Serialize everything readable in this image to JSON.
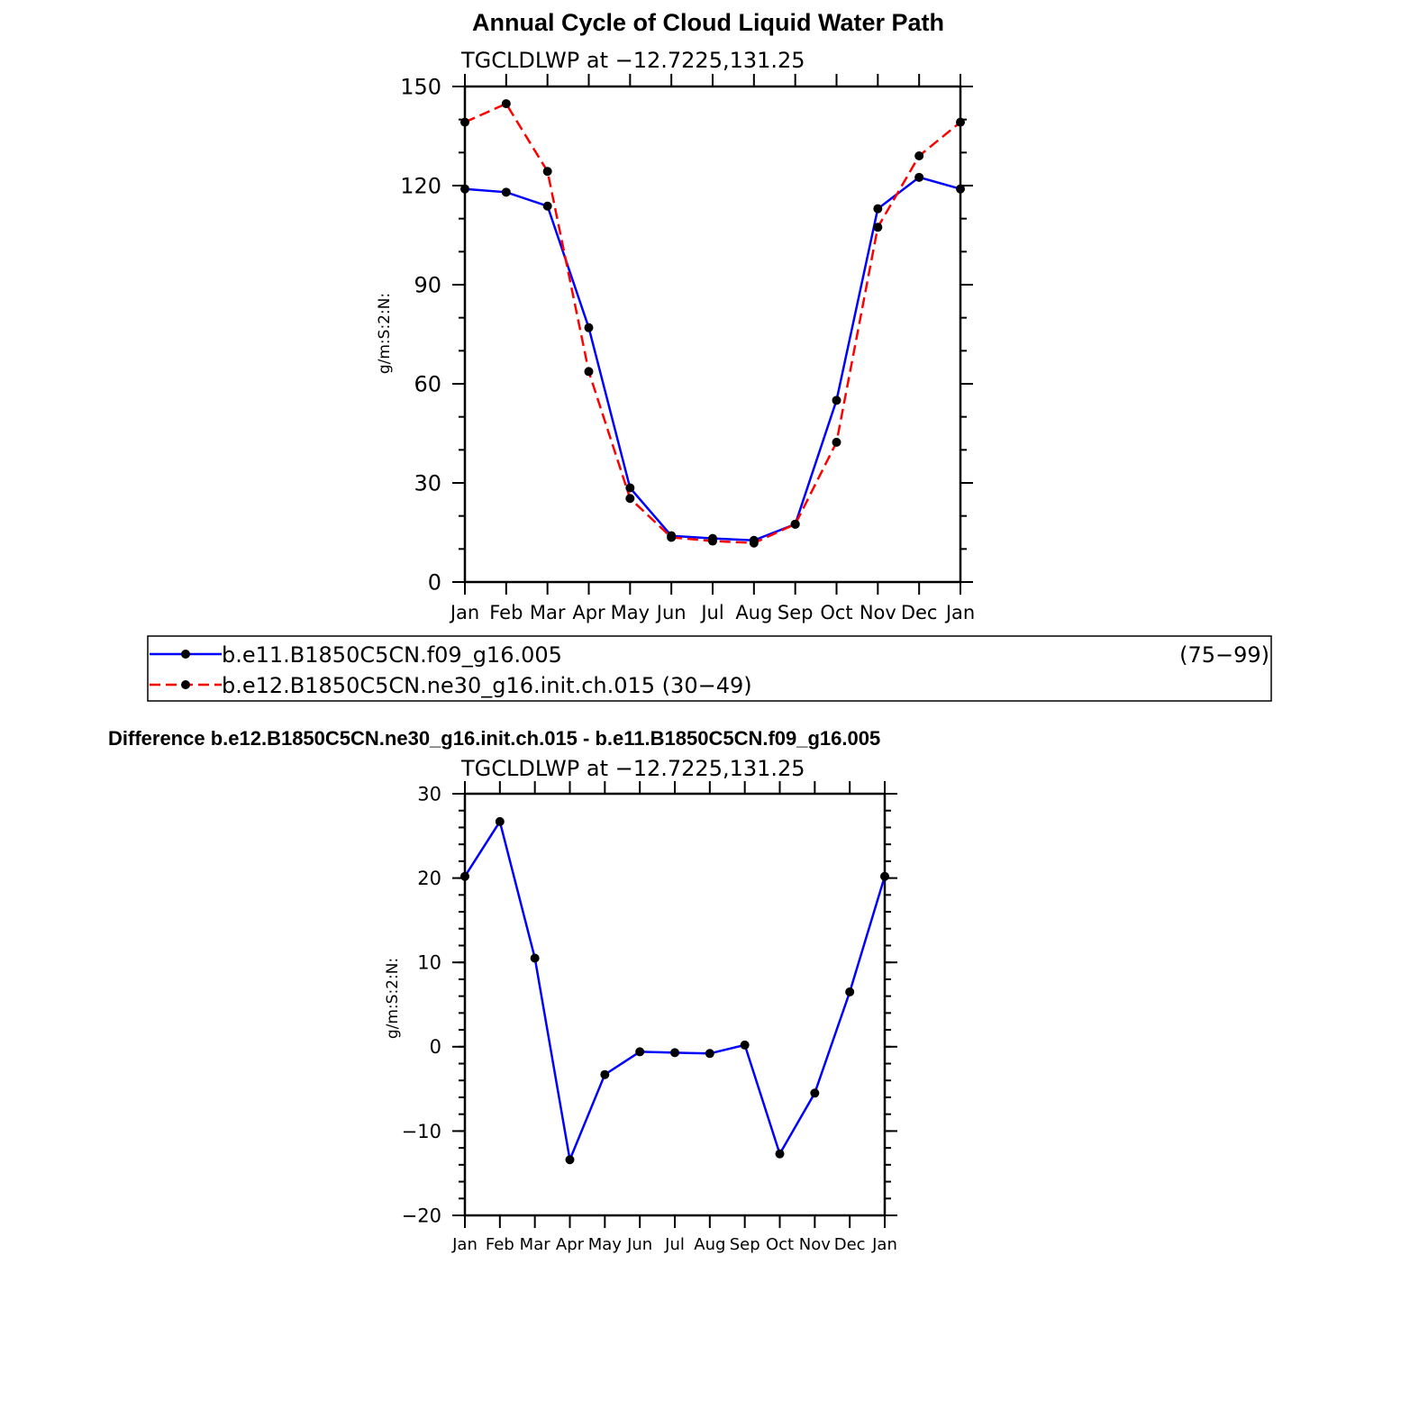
{
  "page_title": "Annual Cycle of Cloud Liquid Water Path",
  "legend": {
    "entries": [
      {
        "label": "b.e11.B1850C5CN.f09_g16.005",
        "years": "(75−99)",
        "color": "#0000ff",
        "dash": "solid"
      },
      {
        "label": "b.e12.B1850C5CN.ne30_g16.init.ch.015 (30−49)",
        "years": "",
        "color": "#ff0000",
        "dash": "dashed"
      }
    ]
  },
  "diff_title": "Difference b.e12.B1850C5CN.ne30_g16.init.ch.015 - b.e11.B1850C5CN.f09_g16.005",
  "chart_data": [
    {
      "type": "line",
      "subtitle": "TGCLDLWP  at  −12.7225,131.25",
      "ylabel": "g/m:S:2:N:",
      "xlabel": "",
      "categories": [
        "Jan",
        "Feb",
        "Mar",
        "Apr",
        "May",
        "Jun",
        "Jul",
        "Aug",
        "Sep",
        "Oct",
        "Nov",
        "Dec",
        "Jan"
      ],
      "ylim": [
        0,
        150
      ],
      "yticks": [
        0,
        30,
        60,
        90,
        120,
        150
      ],
      "ytick_labels": [
        "0",
        "30",
        "60",
        "90",
        "120",
        "150"
      ],
      "yminor_step": 10,
      "series": [
        {
          "name": "b.e11.B1850C5CN.f09_g16.005",
          "color": "#0000ff",
          "dash": "solid",
          "values": [
            119.0,
            118.0,
            113.8,
            77.0,
            28.5,
            14.0,
            13.2,
            12.6,
            17.5,
            55.0,
            113.0,
            122.5,
            119.0
          ]
        },
        {
          "name": "b.e12.B1850C5CN.ne30_g16.init.ch.015",
          "color": "#ff0000",
          "dash": "dashed",
          "values": [
            139.2,
            144.8,
            124.3,
            63.7,
            25.3,
            13.5,
            12.4,
            11.8,
            17.5,
            42.3,
            107.4,
            129.0,
            139.2
          ]
        }
      ]
    },
    {
      "type": "line",
      "subtitle": "TGCLDLWP  at  −12.7225,131.25",
      "ylabel": "g/m:S:2:N:",
      "xlabel": "",
      "categories": [
        "Jan",
        "Feb",
        "Mar",
        "Apr",
        "May",
        "Jun",
        "Jul",
        "Aug",
        "Sep",
        "Oct",
        "Nov",
        "Dec",
        "Jan"
      ],
      "ylim": [
        -20,
        30
      ],
      "yticks": [
        -20,
        -10,
        0,
        10,
        20,
        30
      ],
      "ytick_labels": [
        "−20",
        "−10",
        "0",
        "10",
        "20",
        "30"
      ],
      "yminor_step": 2,
      "series": [
        {
          "color": "#0000ff",
          "dash": "solid",
          "values": [
            20.2,
            26.7,
            10.5,
            -13.4,
            -3.3,
            -0.6,
            -0.7,
            -0.8,
            0.2,
            -12.7,
            -5.5,
            6.5,
            20.2
          ]
        }
      ]
    }
  ]
}
